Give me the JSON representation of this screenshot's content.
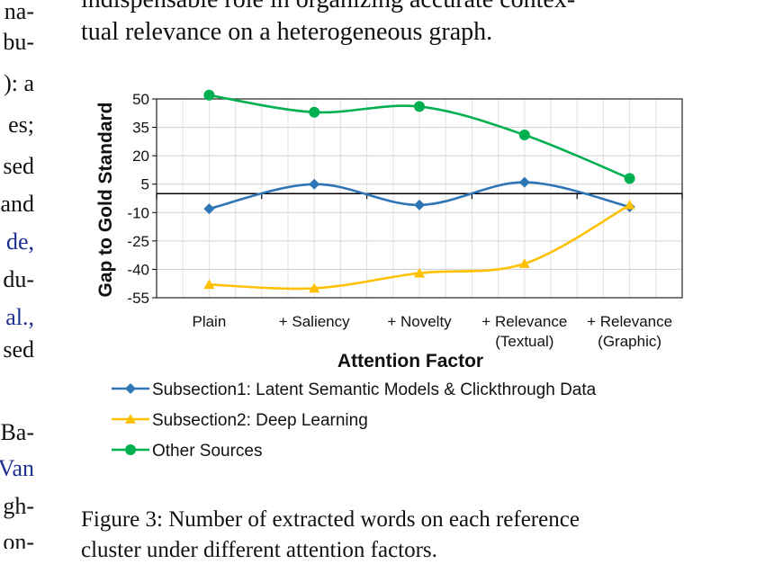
{
  "left_column": [
    {
      "text": "na-",
      "link": false
    },
    {
      "text": "bu-",
      "link": false
    },
    {
      "text": "): a",
      "link": false
    },
    {
      "text": "es;",
      "link": false
    },
    {
      "text": "sed",
      "link": false
    },
    {
      "text": "and",
      "link": false
    },
    {
      "text": "de,",
      "link": true
    },
    {
      "text": "du-",
      "link": false
    },
    {
      "text": "al.,",
      "link": true
    },
    {
      "text": "sed",
      "link": false
    },
    {
      "text": "Ba-",
      "link": false
    },
    {
      "text": "Van",
      "link": true
    },
    {
      "text": "gh-",
      "link": false
    },
    {
      "text": "on-",
      "link": false
    }
  ],
  "paragraph": {
    "line1": "indispensable role in organizing accurate contex-",
    "line2": "tual relevance on a heterogeneous graph."
  },
  "caption": {
    "line1": "Figure 3: Number of extracted words on each reference",
    "line2": "cluster under different attention factors."
  },
  "chart_data": {
    "type": "line",
    "xlabel": "Attention Factor",
    "ylabel": "Gap to Gold Standard",
    "ylim": [
      -55,
      50
    ],
    "yticks": [
      50,
      35,
      20,
      5,
      -10,
      -25,
      -40,
      -55
    ],
    "grid": true,
    "legend_position": "bottom",
    "categories": [
      [
        "Plain"
      ],
      [
        "+ Saliency"
      ],
      [
        "+ Novelty"
      ],
      [
        "+ Relevance",
        "(Textual)"
      ],
      [
        "+ Relevance",
        "(Graphic)"
      ]
    ],
    "series": [
      {
        "name": "Subsection1: Latent Semantic Models & Clickthrough Data",
        "color": "#2e75b6",
        "marker": "diamond",
        "values": [
          -8,
          5,
          -6,
          6,
          -7
        ]
      },
      {
        "name": "Subsection2: Deep Learning",
        "color": "#ffc000",
        "marker": "triangle",
        "values": [
          -48,
          -50,
          -42,
          -37,
          -6
        ]
      },
      {
        "name": "Other Sources",
        "color": "#00b050",
        "marker": "circle",
        "values": [
          52,
          43,
          46,
          31,
          8
        ]
      }
    ]
  }
}
